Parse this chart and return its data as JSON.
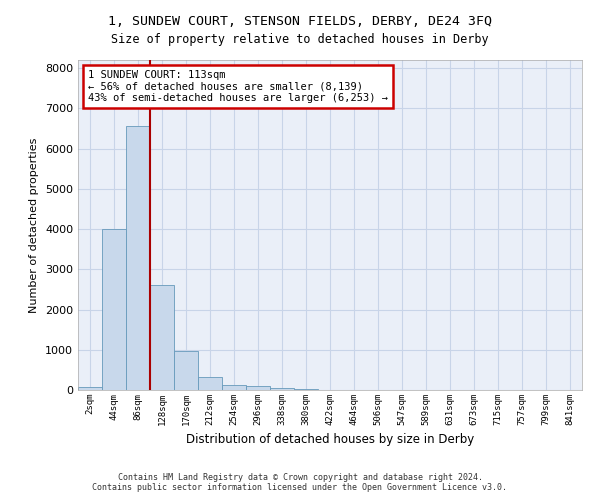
{
  "title": "1, SUNDEW COURT, STENSON FIELDS, DERBY, DE24 3FQ",
  "subtitle": "Size of property relative to detached houses in Derby",
  "xlabel": "Distribution of detached houses by size in Derby",
  "ylabel": "Number of detached properties",
  "bar_color": "#c8d8eb",
  "bar_edge_color": "#6699bb",
  "grid_color": "#c8d4e8",
  "background_color": "#eaeff8",
  "annotation_box_color": "#cc0000",
  "vline_color": "#aa0000",
  "vline_x_index": 2.5,
  "annotation_text_line1": "1 SUNDEW COURT: 113sqm",
  "annotation_text_line2": "← 56% of detached houses are smaller (8,139)",
  "annotation_text_line3": "43% of semi-detached houses are larger (6,253) →",
  "footnote1": "Contains HM Land Registry data © Crown copyright and database right 2024.",
  "footnote2": "Contains public sector information licensed under the Open Government Licence v3.0.",
  "bin_labels": [
    "2sqm",
    "44sqm",
    "86sqm",
    "128sqm",
    "170sqm",
    "212sqm",
    "254sqm",
    "296sqm",
    "338sqm",
    "380sqm",
    "422sqm",
    "464sqm",
    "506sqm",
    "547sqm",
    "589sqm",
    "631sqm",
    "673sqm",
    "715sqm",
    "757sqm",
    "799sqm",
    "841sqm"
  ],
  "bar_heights": [
    70,
    4000,
    6550,
    2620,
    960,
    320,
    130,
    90,
    60,
    30,
    0,
    0,
    0,
    0,
    0,
    0,
    0,
    0,
    0,
    0,
    0
  ],
  "ylim": [
    0,
    8200
  ],
  "yticks": [
    0,
    1000,
    2000,
    3000,
    4000,
    5000,
    6000,
    7000,
    8000
  ]
}
